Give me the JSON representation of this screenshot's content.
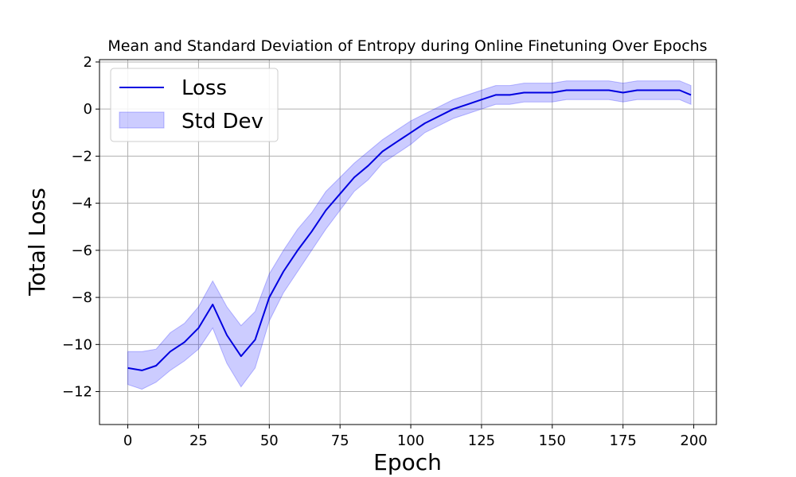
{
  "chart_data": {
    "type": "line",
    "title": "Mean and Standard Deviation of Entropy during Online Finetuning Over Epochs",
    "xlabel": "Epoch",
    "ylabel": "Total Loss",
    "xlim": [
      -10,
      208
    ],
    "ylim": [
      -13.4,
      2.1
    ],
    "xticks": [
      0,
      25,
      50,
      75,
      100,
      125,
      150,
      175,
      200
    ],
    "yticks": [
      -12,
      -10,
      -8,
      -6,
      -4,
      -2,
      0,
      2
    ],
    "grid": true,
    "legend_position": "top-left",
    "series": [
      {
        "name": "Loss",
        "kind": "line",
        "color": "#0000e0",
        "x": [
          0,
          5,
          10,
          15,
          20,
          25,
          30,
          35,
          40,
          45,
          50,
          55,
          60,
          65,
          70,
          75,
          80,
          85,
          90,
          95,
          100,
          105,
          110,
          115,
          120,
          125,
          130,
          135,
          140,
          145,
          150,
          155,
          160,
          165,
          170,
          175,
          180,
          185,
          190,
          195,
          199
        ],
        "y": [
          -11.0,
          -11.1,
          -10.9,
          -10.3,
          -9.9,
          -9.3,
          -8.3,
          -9.6,
          -10.5,
          -9.8,
          -8.0,
          -6.9,
          -6.0,
          -5.2,
          -4.3,
          -3.6,
          -2.9,
          -2.4,
          -1.8,
          -1.4,
          -1.0,
          -0.6,
          -0.3,
          0.0,
          0.2,
          0.4,
          0.6,
          0.6,
          0.7,
          0.7,
          0.7,
          0.8,
          0.8,
          0.8,
          0.8,
          0.7,
          0.8,
          0.8,
          0.8,
          0.8,
          0.6
        ]
      },
      {
        "name": "Std Dev",
        "kind": "band",
        "color": "#0000ff",
        "x": [
          0,
          5,
          10,
          15,
          20,
          25,
          30,
          35,
          40,
          45,
          50,
          55,
          60,
          65,
          70,
          75,
          80,
          85,
          90,
          95,
          100,
          105,
          110,
          115,
          120,
          125,
          130,
          135,
          140,
          145,
          150,
          155,
          160,
          165,
          170,
          175,
          180,
          185,
          190,
          195,
          199
        ],
        "std": [
          0.7,
          0.8,
          0.7,
          0.8,
          0.8,
          0.9,
          1.0,
          1.2,
          1.3,
          1.2,
          1.0,
          0.9,
          0.9,
          0.8,
          0.8,
          0.7,
          0.6,
          0.6,
          0.5,
          0.5,
          0.5,
          0.4,
          0.4,
          0.4,
          0.4,
          0.4,
          0.4,
          0.4,
          0.4,
          0.4,
          0.4,
          0.4,
          0.4,
          0.4,
          0.4,
          0.4,
          0.4,
          0.4,
          0.4,
          0.4,
          0.4
        ]
      }
    ]
  }
}
